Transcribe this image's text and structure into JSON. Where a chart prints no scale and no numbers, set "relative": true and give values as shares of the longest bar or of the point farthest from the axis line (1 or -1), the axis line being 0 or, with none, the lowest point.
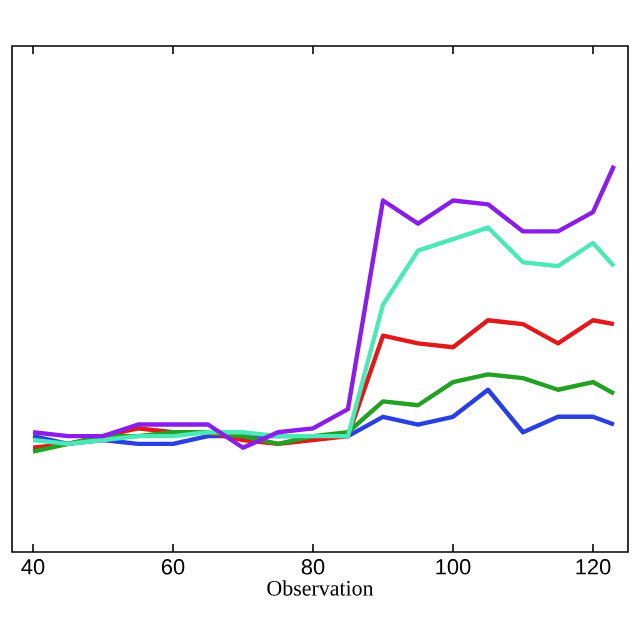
{
  "chart_data": {
    "type": "line",
    "xlabel": "Observation",
    "relative": true,
    "x": [
      40,
      45,
      50,
      55,
      60,
      65,
      70,
      75,
      80,
      85,
      90,
      95,
      100,
      105,
      110,
      115,
      120,
      123
    ],
    "xlim": [
      37,
      125
    ],
    "xticks": [
      40,
      60,
      80,
      100,
      120
    ],
    "grid": false,
    "marker": "none",
    "line_style": "solid",
    "series": [
      {
        "color": "#2a3fe0",
        "values": [
          0.3,
          0.28,
          0.29,
          0.28,
          0.28,
          0.3,
          0.3,
          0.3,
          0.3,
          0.3,
          0.35,
          0.33,
          0.35,
          0.42,
          0.31,
          0.35,
          0.35,
          0.33
        ]
      },
      {
        "color": "#e01a1a",
        "values": [
          0.27,
          0.28,
          0.3,
          0.32,
          0.31,
          0.31,
          0.29,
          0.28,
          0.29,
          0.3,
          0.56,
          0.54,
          0.53,
          0.6,
          0.59,
          0.54,
          0.6,
          0.59
        ]
      },
      {
        "color": "#24a024",
        "values": [
          0.26,
          0.28,
          0.3,
          0.3,
          0.31,
          0.31,
          0.3,
          0.28,
          0.3,
          0.31,
          0.39,
          0.38,
          0.44,
          0.46,
          0.45,
          0.42,
          0.44,
          0.41
        ]
      },
      {
        "color": "#4ee8b8",
        "values": [
          0.29,
          0.28,
          0.29,
          0.3,
          0.3,
          0.31,
          0.31,
          0.3,
          0.3,
          0.3,
          0.64,
          0.78,
          0.81,
          0.84,
          0.75,
          0.74,
          0.8,
          0.74
        ]
      },
      {
        "color": "#8a1ee8",
        "values": [
          0.31,
          0.3,
          0.3,
          0.33,
          0.33,
          0.33,
          0.27,
          0.31,
          0.32,
          0.37,
          0.91,
          0.85,
          0.91,
          0.9,
          0.83,
          0.83,
          0.88,
          1.0
        ]
      }
    ]
  }
}
